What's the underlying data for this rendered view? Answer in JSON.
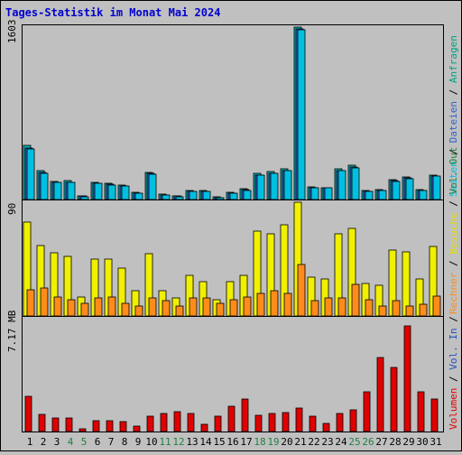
{
  "title": "Tages-Statistik im Monat Mai 2024",
  "colors": {
    "background": "#c0c0c0",
    "panel": "#c0c0c0",
    "title": "#0000d0",
    "anfragen": "#00b0b0",
    "dateien": "#3060d0",
    "seiten": "#00c0e0",
    "besuche": "#f0f000",
    "rechner": "#ff8c1a",
    "vol_in": "#2050c0",
    "vol_out": "#208040",
    "volumen": "#e00000",
    "weekend_label": "#208040",
    "day_label": "#000000"
  },
  "labels": {
    "top_max": "1603",
    "mid_max": "90",
    "bot_max": "7.17 MB"
  },
  "legend_right": {
    "top": [
      {
        "text": "Seiten",
        "color": "#00c0e0"
      },
      {
        "text": " / ",
        "color": "#000000"
      },
      {
        "text": "Dateien",
        "color": "#3060d0"
      },
      {
        "text": " / ",
        "color": "#000000"
      },
      {
        "text": "Anfragen",
        "color": "#00a080"
      }
    ],
    "mid": [
      {
        "text": "Rechner",
        "color": "#ff8c1a"
      },
      {
        "text": " / ",
        "color": "#000000"
      },
      {
        "text": "Besuche",
        "color": "#e0e000"
      },
      {
        "text": " / ",
        "color": "#000000"
      },
      {
        "text": "Vol. Out",
        "color": "#208040"
      }
    ],
    "bot": [
      {
        "text": "Volumen",
        "color": "#e00000"
      },
      {
        "text": " / ",
        "color": "#000000"
      },
      {
        "text": "Vol. In",
        "color": "#2050c0"
      },
      {
        "text": " / ",
        "color": "#000000"
      }
    ]
  },
  "chart_data": {
    "type": "bar",
    "title": "Tages-Statistik im Monat Mai 2024",
    "categories": [
      "1",
      "2",
      "3",
      "4",
      "5",
      "6",
      "7",
      "8",
      "9",
      "10",
      "11",
      "12",
      "13",
      "14",
      "15",
      "16",
      "17",
      "18",
      "19",
      "20",
      "21",
      "22",
      "23",
      "24",
      "25",
      "26",
      "27",
      "28",
      "29",
      "30",
      "31"
    ],
    "weekend_days": [
      4,
      5,
      11,
      12,
      18,
      19,
      25,
      26
    ],
    "panels": [
      {
        "name": "top",
        "max_label": "1603",
        "ymax": 1603,
        "series": [
          {
            "name": "Anfragen",
            "values": [
              505,
              265,
              165,
              174,
              36,
              160,
              150,
              135,
              68,
              251,
              48,
              36,
              80,
              80,
              27,
              66,
              97,
              240,
              256,
              285,
              1603,
              115,
              112,
              287,
              320,
              80,
              95,
              185,
              206,
              91,
              230
            ]
          },
          {
            "name": "Dateien",
            "values": [
              475,
              250,
              160,
              160,
              30,
              155,
              140,
              130,
              60,
              240,
              40,
              30,
              75,
              75,
              20,
              60,
              90,
              230,
              245,
              270,
              1590,
              110,
              108,
              270,
              300,
              75,
              88,
              175,
              198,
              85,
              220
            ]
          },
          {
            "name": "Seiten",
            "values": [
              470,
              245,
              158,
              158,
              28,
              150,
              138,
              128,
              58,
              238,
              38,
              28,
              73,
              73,
              18,
              58,
              88,
              225,
              240,
              265,
              1580,
              108,
              106,
              265,
              295,
              72,
              86,
              172,
              195,
              83,
              218
            ]
          }
        ]
      },
      {
        "name": "mid",
        "max_label": "90",
        "ymax": 90,
        "series": [
          {
            "name": "Besuche",
            "values": [
              74,
              56,
              50,
              47,
              15,
              45,
              45,
              38,
              20,
              49,
              20,
              14,
              32,
              27,
              13,
              27,
              32,
              67,
              65,
              72,
              90,
              31,
              29,
              65,
              69,
              26,
              24,
              52,
              51,
              29,
              55
            ]
          },
          {
            "name": "Rechner",
            "values": [
              21,
              22,
              15,
              13,
              10,
              14,
              15,
              10,
              8,
              14,
              12,
              8,
              14,
              14,
              10,
              13,
              15,
              18,
              20,
              18,
              41,
              12,
              14,
              14,
              25,
              13,
              8,
              12,
              8,
              9,
              16
            ]
          }
        ]
      },
      {
        "name": "bot",
        "max_label": "7.17 MB",
        "ymax": 7.17,
        "unit": "MB",
        "series": [
          {
            "name": "Volumen",
            "values": [
              2.3,
              1.1,
              0.9,
              0.9,
              0.15,
              0.7,
              0.7,
              0.65,
              0.35,
              1.0,
              1.2,
              1.3,
              1.2,
              0.45,
              1.0,
              1.65,
              2.1,
              1.05,
              1.15,
              1.25,
              1.5,
              1.0,
              0.5,
              1.2,
              1.4,
              2.6,
              4.8,
              4.2,
              6.9,
              2.6,
              2.1
            ]
          }
        ]
      }
    ]
  }
}
